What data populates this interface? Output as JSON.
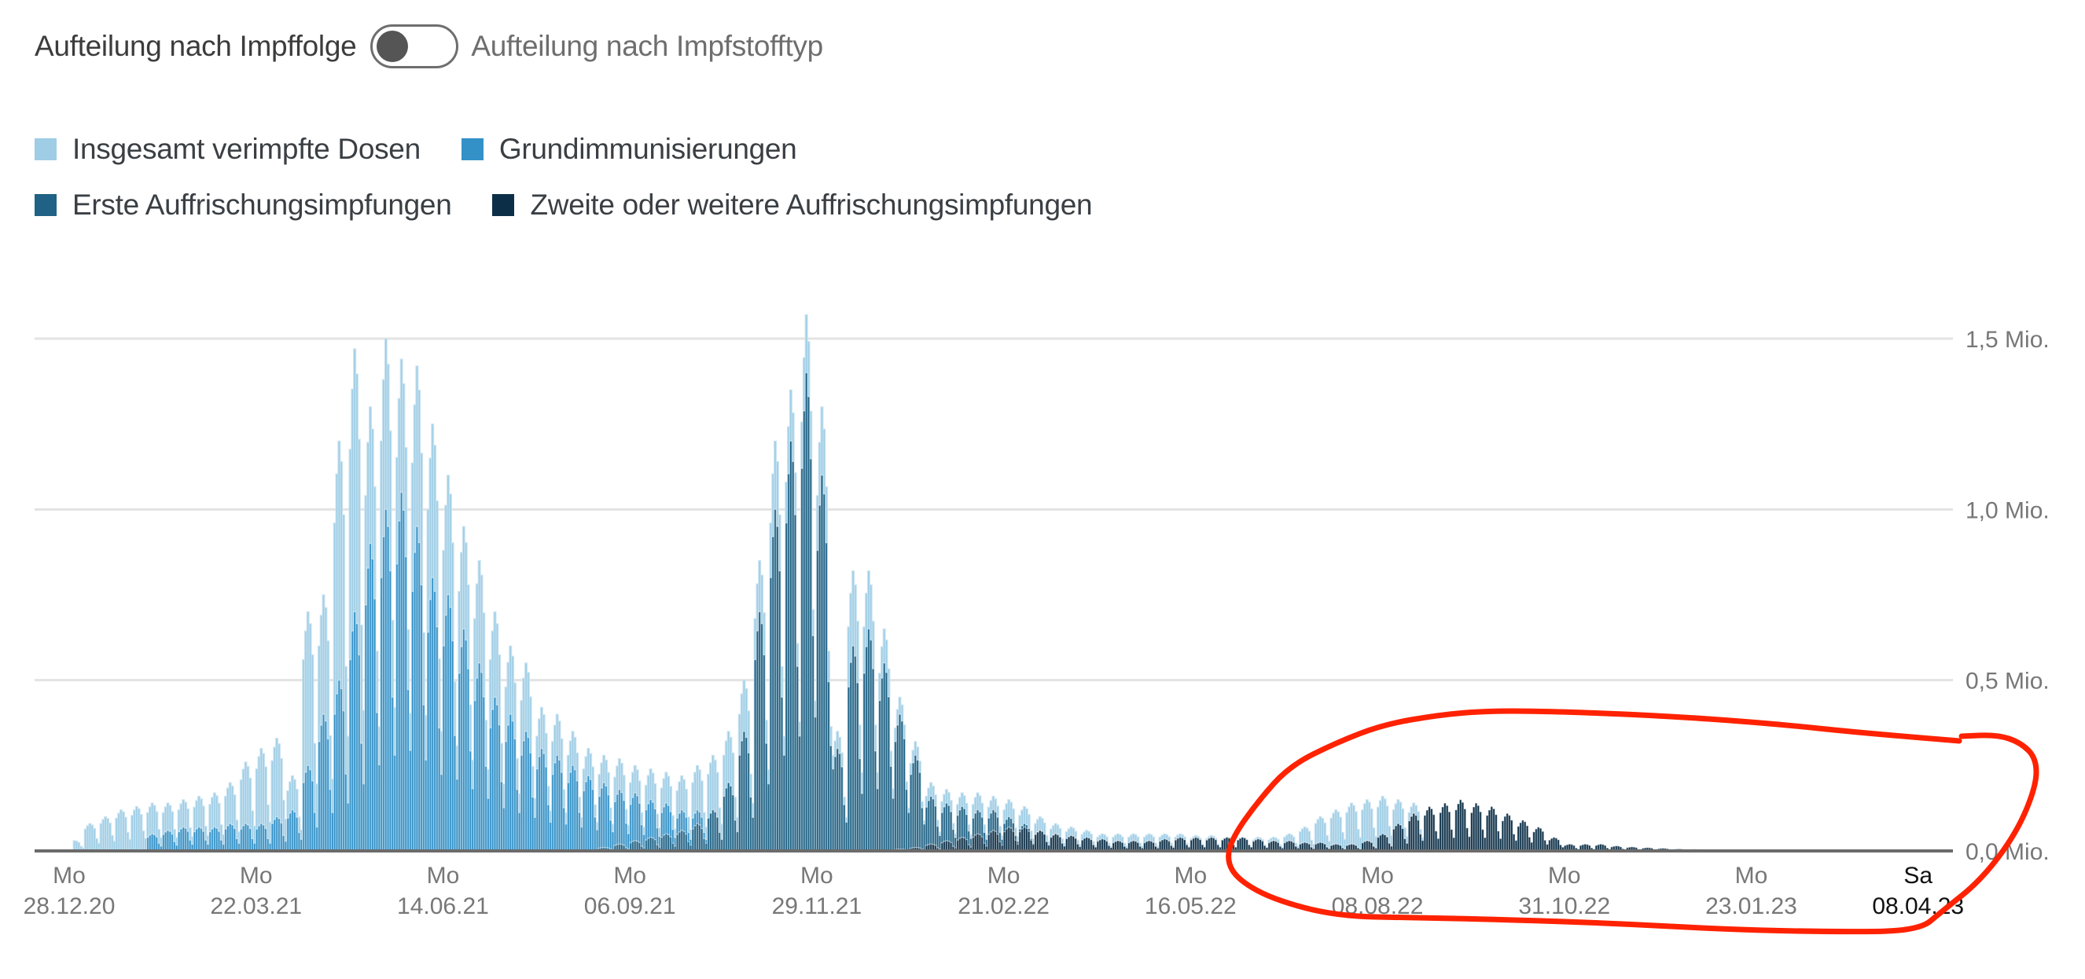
{
  "toggle": {
    "left_label": "Aufteilung nach Impffolge",
    "right_label": "Aufteilung nach Impfstofftyp",
    "state": "left"
  },
  "legend": {
    "items": [
      {
        "label": "Insgesamt verimpfte Dosen",
        "color": "#9ecde5"
      },
      {
        "label": "Grundimmunisierungen",
        "color": "#3391c7"
      },
      {
        "label": "Erste Auffrischungsimpfungen",
        "color": "#1f6285"
      },
      {
        "label": "Zweite oder weitere Auffrischungsimpfungen",
        "color": "#0c2f47"
      }
    ]
  },
  "annotation": {
    "color": "#ff2200",
    "shape": "hand-drawn-circle",
    "points": [
      [
        2492,
        943
      ],
      [
        2380,
        934
      ],
      [
        2246,
        920
      ],
      [
        2100,
        910
      ],
      [
        1960,
        905
      ],
      [
        1888,
        905
      ],
      [
        1830,
        910
      ],
      [
        1760,
        922
      ],
      [
        1700,
        945
      ],
      [
        1640,
        975
      ],
      [
        1600,
        1020
      ],
      [
        1568,
        1065
      ],
      [
        1560,
        1095
      ],
      [
        1575,
        1120
      ],
      [
        1620,
        1145
      ],
      [
        1700,
        1166
      ],
      [
        1800,
        1168
      ],
      [
        1900,
        1170
      ],
      [
        2050,
        1175
      ],
      [
        2200,
        1183
      ],
      [
        2330,
        1186
      ],
      [
        2440,
        1185
      ],
      [
        2470,
        1160
      ],
      [
        2520,
        1120
      ],
      [
        2565,
        1060
      ],
      [
        2590,
        1000
      ],
      [
        2590,
        965
      ],
      [
        2570,
        945
      ],
      [
        2540,
        935
      ],
      [
        2495,
        937
      ]
    ]
  },
  "chart_data": {
    "type": "bar",
    "title": "",
    "xlabel": "",
    "ylabel": "",
    "ylim": [
      0,
      1.5
    ],
    "y_unit": "Mio.",
    "grid": true,
    "legend_position": "top-left",
    "y_ticks": [
      {
        "value": 0.0,
        "label": "0,0 Mio."
      },
      {
        "value": 0.5,
        "label": "0,5 Mio."
      },
      {
        "value": 1.0,
        "label": "1,0 Mio."
      },
      {
        "value": 1.5,
        "label": "1,5 Mio."
      }
    ],
    "x_ticks": [
      {
        "day": "Mo",
        "date": "28.12.20"
      },
      {
        "day": "Mo",
        "date": "22.03.21"
      },
      {
        "day": "Mo",
        "date": "14.06.21"
      },
      {
        "day": "Mo",
        "date": "06.09.21"
      },
      {
        "day": "Mo",
        "date": "29.11.21"
      },
      {
        "day": "Mo",
        "date": "21.02.22"
      },
      {
        "day": "Mo",
        "date": "16.05.22"
      },
      {
        "day": "Mo",
        "date": "08.08.22"
      },
      {
        "day": "Mo",
        "date": "31.10.22"
      },
      {
        "day": "Mo",
        "date": "23.01.23"
      },
      {
        "day": "Sa",
        "date": "08.04.23",
        "highlight": true
      }
    ],
    "x_start": "28.12.20",
    "x_end": "08.04.23",
    "granularity": "daily (weekly peak values listed, Mio. doses)",
    "weekday_pattern": [
      0.8,
      0.92,
      1.0,
      0.95,
      0.82,
      0.45,
      0.28
    ],
    "series": [
      {
        "name": "Insgesamt verimpfte Dosen",
        "color": "#9ecde5",
        "weekly_peak": [
          0.03,
          0.08,
          0.1,
          0.12,
          0.13,
          0.14,
          0.14,
          0.15,
          0.16,
          0.17,
          0.2,
          0.26,
          0.3,
          0.33,
          0.22,
          0.7,
          0.75,
          1.2,
          1.47,
          1.3,
          1.5,
          1.44,
          1.42,
          1.25,
          1.1,
          0.95,
          0.85,
          0.7,
          0.6,
          0.55,
          0.42,
          0.4,
          0.35,
          0.3,
          0.28,
          0.27,
          0.25,
          0.24,
          0.23,
          0.22,
          0.25,
          0.28,
          0.35,
          0.5,
          0.85,
          1.2,
          1.35,
          1.57,
          1.3,
          0.35,
          0.82,
          0.82,
          0.65,
          0.45,
          0.32,
          0.2,
          0.18,
          0.17,
          0.17,
          0.16,
          0.15,
          0.13,
          0.1,
          0.08,
          0.07,
          0.06,
          0.05,
          0.05,
          0.05,
          0.05,
          0.05,
          0.05,
          0.045,
          0.045,
          0.04,
          0.04,
          0.04,
          0.04,
          0.05,
          0.07,
          0.1,
          0.12,
          0.14,
          0.15,
          0.16,
          0.15,
          0.14,
          0.12,
          0.1,
          0.08,
          0.06,
          0.03,
          0.02,
          0.02,
          0.02,
          0.015,
          0.01,
          0.01,
          0.008,
          0.006,
          0.005,
          0.005,
          0.004,
          0.004,
          0.003,
          0.003,
          0.003,
          0.003,
          0.003,
          0.003,
          0.002,
          0.002,
          0.002,
          0.002,
          0.002,
          0.002,
          0.002,
          0.002,
          0.002
        ]
      },
      {
        "name": "Grundimmunisierungen",
        "color": "#3391c7",
        "weekly_peak": [
          0.0,
          0.0,
          0.0,
          0.0,
          0.0,
          0.05,
          0.06,
          0.07,
          0.07,
          0.07,
          0.08,
          0.08,
          0.08,
          0.1,
          0.12,
          0.25,
          0.4,
          0.5,
          0.7,
          0.9,
          1.0,
          1.05,
          0.95,
          0.8,
          0.75,
          0.65,
          0.55,
          0.45,
          0.4,
          0.35,
          0.3,
          0.28,
          0.25,
          0.22,
          0.2,
          0.18,
          0.17,
          0.15,
          0.14,
          0.12,
          0.12,
          0.1,
          0.1,
          0.1,
          0.12,
          0.12,
          0.1,
          0.1,
          0.08,
          0.06,
          0.1,
          0.1,
          0.08,
          0.06,
          0.05,
          0.04,
          0.03,
          0.02,
          0.02,
          0.02,
          0.015,
          0.01,
          0.01,
          0.005,
          0.005,
          0.004,
          0.003,
          0.003,
          0.003,
          0.003,
          0.002,
          0.002,
          0.002,
          0.002,
          0.002,
          0.002,
          0.002,
          0.002,
          0.002,
          0.002,
          0.002,
          0.002,
          0.002,
          0.002,
          0.002,
          0.002,
          0.002,
          0.002,
          0.002,
          0.002,
          0.002,
          0.002,
          0.002,
          0.002,
          0.002,
          0.002,
          0.002,
          0.002,
          0.002,
          0.002,
          0.002,
          0.002,
          0.002,
          0.002,
          0.002,
          0.002,
          0.002,
          0.002,
          0.002,
          0.002,
          0.002,
          0.002,
          0.002,
          0.002,
          0.002,
          0.002,
          0.002,
          0.002,
          0.002
        ]
      },
      {
        "name": "Erste Auffrischungsimpfungen",
        "color": "#1f6285",
        "weekly_peak": [
          0,
          0,
          0,
          0,
          0,
          0,
          0,
          0,
          0,
          0,
          0,
          0,
          0,
          0,
          0,
          0,
          0,
          0,
          0,
          0,
          0,
          0,
          0,
          0,
          0,
          0,
          0,
          0,
          0,
          0,
          0,
          0,
          0,
          0,
          0.01,
          0.02,
          0.03,
          0.04,
          0.05,
          0.06,
          0.08,
          0.12,
          0.2,
          0.35,
          0.7,
          1.0,
          1.2,
          1.4,
          1.1,
          0.3,
          0.6,
          0.65,
          0.55,
          0.4,
          0.28,
          0.16,
          0.14,
          0.13,
          0.12,
          0.12,
          0.1,
          0.08,
          0.06,
          0.05,
          0.04,
          0.03,
          0.03,
          0.02,
          0.02,
          0.02,
          0.015,
          0.015,
          0.01,
          0.01,
          0.01,
          0.01,
          0.01,
          0.01,
          0.01,
          0.01,
          0.01,
          0.01,
          0.01,
          0.01,
          0.01,
          0.01,
          0.01,
          0.008,
          0.008,
          0.006,
          0.005,
          0.004,
          0.003,
          0.003,
          0.002,
          0.002,
          0.002,
          0.002,
          0.002,
          0.002,
          0.002,
          0.002,
          0.002,
          0.002,
          0.002,
          0.002,
          0.002,
          0.002,
          0.002,
          0.002,
          0.002,
          0.002,
          0.002,
          0.002,
          0.002,
          0.002,
          0.002,
          0.002,
          0.002
        ]
      },
      {
        "name": "Zweite oder weitere Auffrischungsimpfungen",
        "color": "#0c2f47",
        "weekly_peak": [
          0,
          0,
          0,
          0,
          0,
          0,
          0,
          0,
          0,
          0,
          0,
          0,
          0,
          0,
          0,
          0,
          0,
          0,
          0,
          0,
          0,
          0,
          0,
          0,
          0,
          0,
          0,
          0,
          0,
          0,
          0,
          0,
          0,
          0,
          0,
          0,
          0,
          0,
          0,
          0,
          0,
          0,
          0,
          0,
          0,
          0,
          0,
          0,
          0,
          0,
          0,
          0,
          0,
          0.005,
          0.01,
          0.02,
          0.03,
          0.04,
          0.05,
          0.06,
          0.07,
          0.07,
          0.06,
          0.05,
          0.045,
          0.04,
          0.035,
          0.03,
          0.03,
          0.03,
          0.035,
          0.04,
          0.04,
          0.04,
          0.04,
          0.04,
          0.035,
          0.03,
          0.03,
          0.025,
          0.025,
          0.02,
          0.02,
          0.03,
          0.05,
          0.08,
          0.11,
          0.13,
          0.14,
          0.15,
          0.14,
          0.13,
          0.11,
          0.09,
          0.07,
          0.04,
          0.02,
          0.02,
          0.02,
          0.015,
          0.012,
          0.01,
          0.008,
          0.006,
          0.005,
          0.004,
          0.004,
          0.003,
          0.003,
          0.003,
          0.003,
          0.003,
          0.002,
          0.002,
          0.002,
          0.002,
          0.002,
          0.002,
          0.002,
          0.002,
          0.002
        ]
      }
    ]
  }
}
